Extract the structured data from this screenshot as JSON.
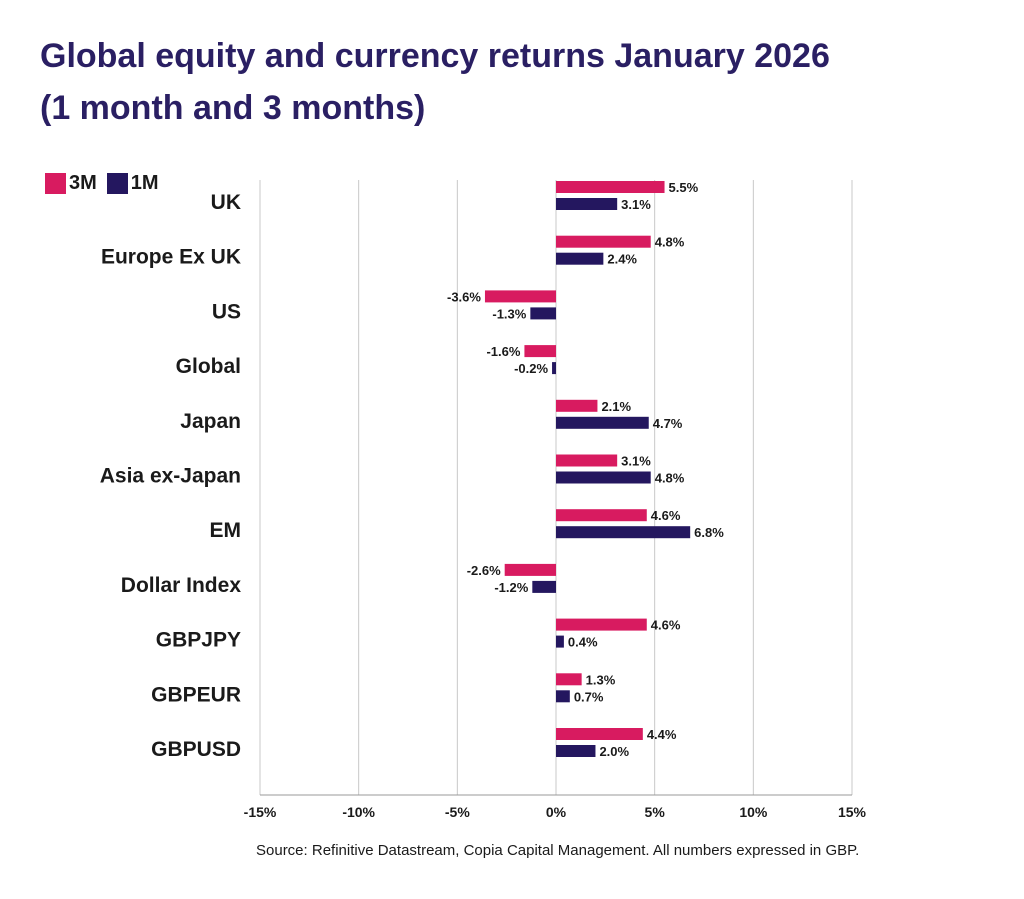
{
  "title_line1": "Global equity and currency returns January 2026",
  "title_line2": "(1 month and 3 months)",
  "source": "Source: Refinitive Datastream, Copia Capital Management. All numbers expressed in GBP.",
  "colors": {
    "s3m": "#d81b60",
    "s1m": "#24175f",
    "grid": "#c8c8c8",
    "title": "#2a1f63"
  },
  "chart_data": {
    "type": "bar",
    "orientation": "horizontal",
    "title": "Global equity and currency returns January 2026 (1 month and 3 months)",
    "categories": [
      "UK",
      "Europe Ex UK",
      "US",
      "Global",
      "Japan",
      "Asia ex-Japan",
      "EM",
      "Dollar Index",
      "GBPJPY",
      "GBPEUR",
      "GBPUSD"
    ],
    "series": [
      {
        "name": "3M",
        "values": [
          5.5,
          4.8,
          -3.6,
          -1.6,
          2.1,
          3.1,
          4.6,
          -2.6,
          4.6,
          1.3,
          4.4
        ],
        "labels": [
          "5.5%",
          "4.8%",
          "-3.6%",
          "-1.6%",
          "2.1%",
          "3.1%",
          "4.6%",
          "-2.6%",
          "4.6%",
          "1.3%",
          "4.4%"
        ]
      },
      {
        "name": "1M",
        "values": [
          3.1,
          2.4,
          -1.3,
          -0.2,
          4.7,
          4.8,
          6.8,
          -1.2,
          0.4,
          0.7,
          2.0
        ],
        "labels": [
          "3.1%",
          "2.4%",
          "-1.3%",
          "-0.2%",
          "4.7%",
          "4.8%",
          "6.8%",
          "-1.2%",
          "0.4%",
          "0.7%",
          "2.0%"
        ]
      }
    ],
    "xlim": [
      -15,
      15
    ],
    "xticks": [
      -15,
      -10,
      -5,
      0,
      5,
      10,
      15
    ],
    "xtick_labels": [
      "-15%",
      "-10%",
      "-5%",
      "0%",
      "5%",
      "10%",
      "15%"
    ],
    "grid": true,
    "legend": "top-left"
  }
}
